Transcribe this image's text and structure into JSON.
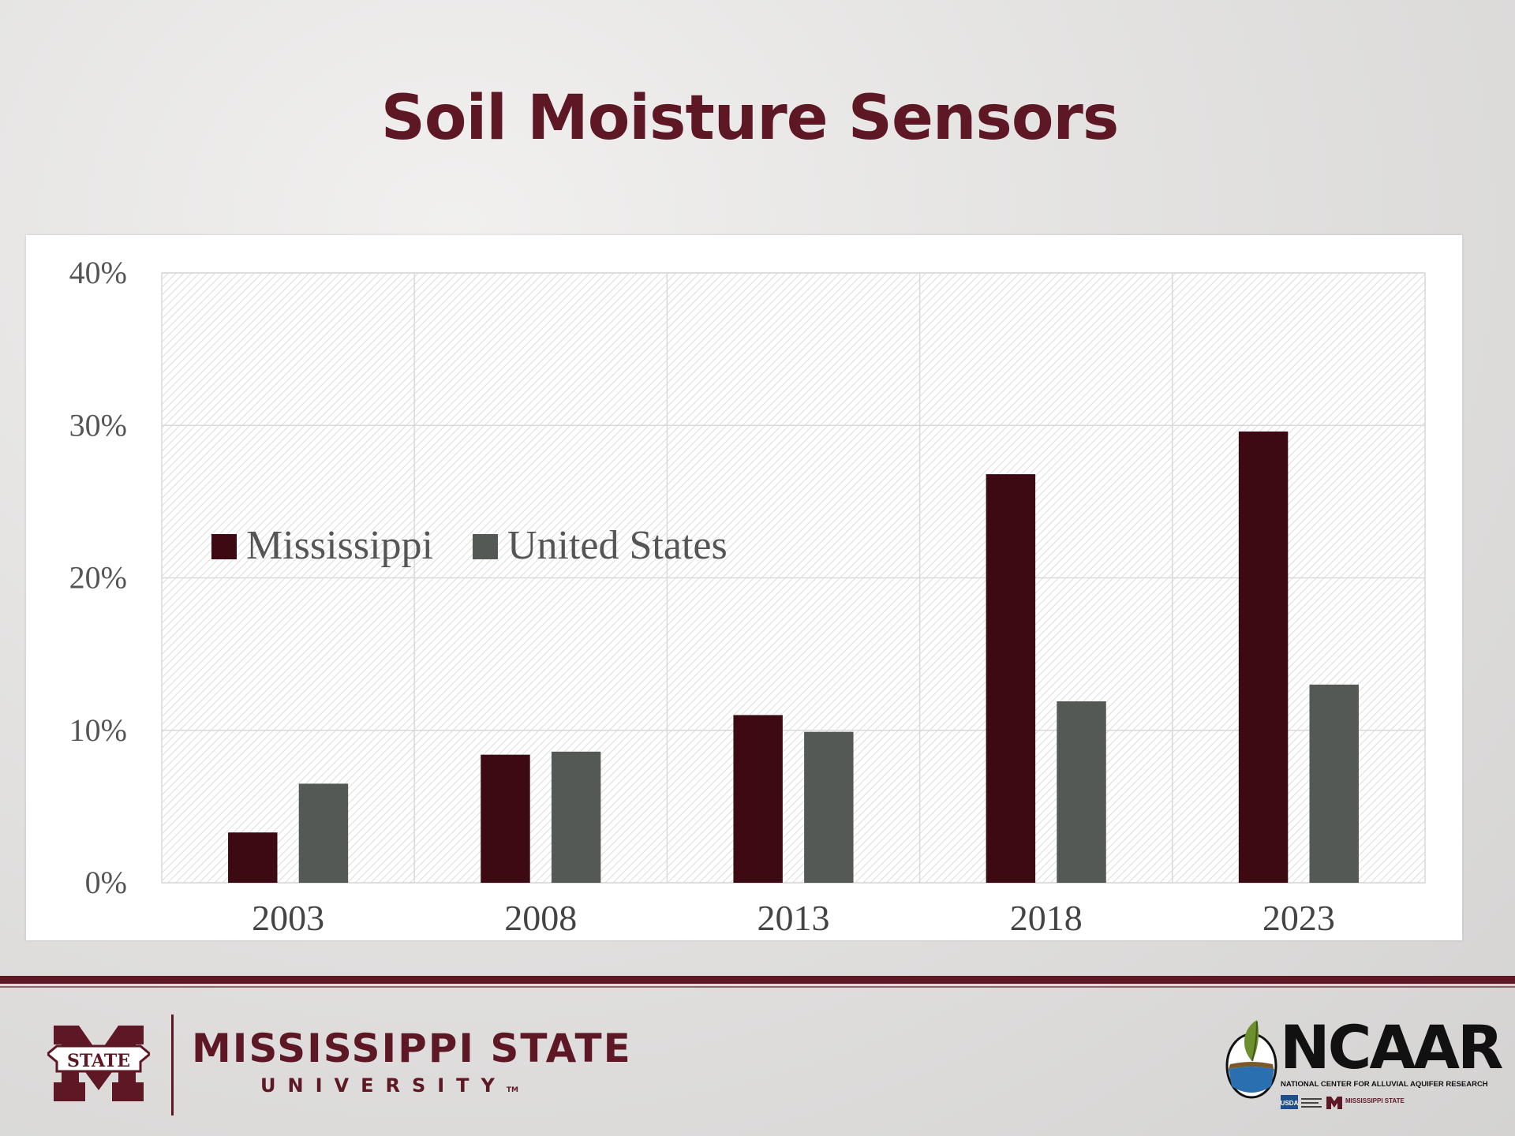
{
  "slide": {
    "title": "Soil Moisture Sensors"
  },
  "chart_data": {
    "type": "bar",
    "categories": [
      "2003",
      "2008",
      "2013",
      "2018",
      "2023"
    ],
    "series": [
      {
        "name": "Mississippi",
        "color": "#3d0a14",
        "values": [
          3.3,
          8.4,
          11.0,
          26.8,
          29.6
        ]
      },
      {
        "name": "United States",
        "color": "#555955",
        "values": [
          6.5,
          8.6,
          9.9,
          11.9,
          13.0
        ]
      }
    ],
    "ylim": [
      0,
      40
    ],
    "yticks": [
      "0%",
      "10%",
      "20%",
      "30%",
      "40%"
    ],
    "ytick_values": [
      0,
      10,
      20,
      30,
      40
    ],
    "grid": true,
    "legend_position": "center-left",
    "xlabel": "",
    "ylabel": ""
  },
  "footer": {
    "msu_name": "MISSISSIPPI STATE",
    "msu_sub": "UNIVERSITY",
    "msu_tm": "TM",
    "msu_seal_text": "STATE",
    "ncaar_name": "NCAAR",
    "ncaar_full": "NATIONAL CENTER FOR ALLUVIAL AQUIFER RESEARCH",
    "partner_usda": "USDA",
    "partner_msu": "MISSISSIPPI STATE"
  }
}
